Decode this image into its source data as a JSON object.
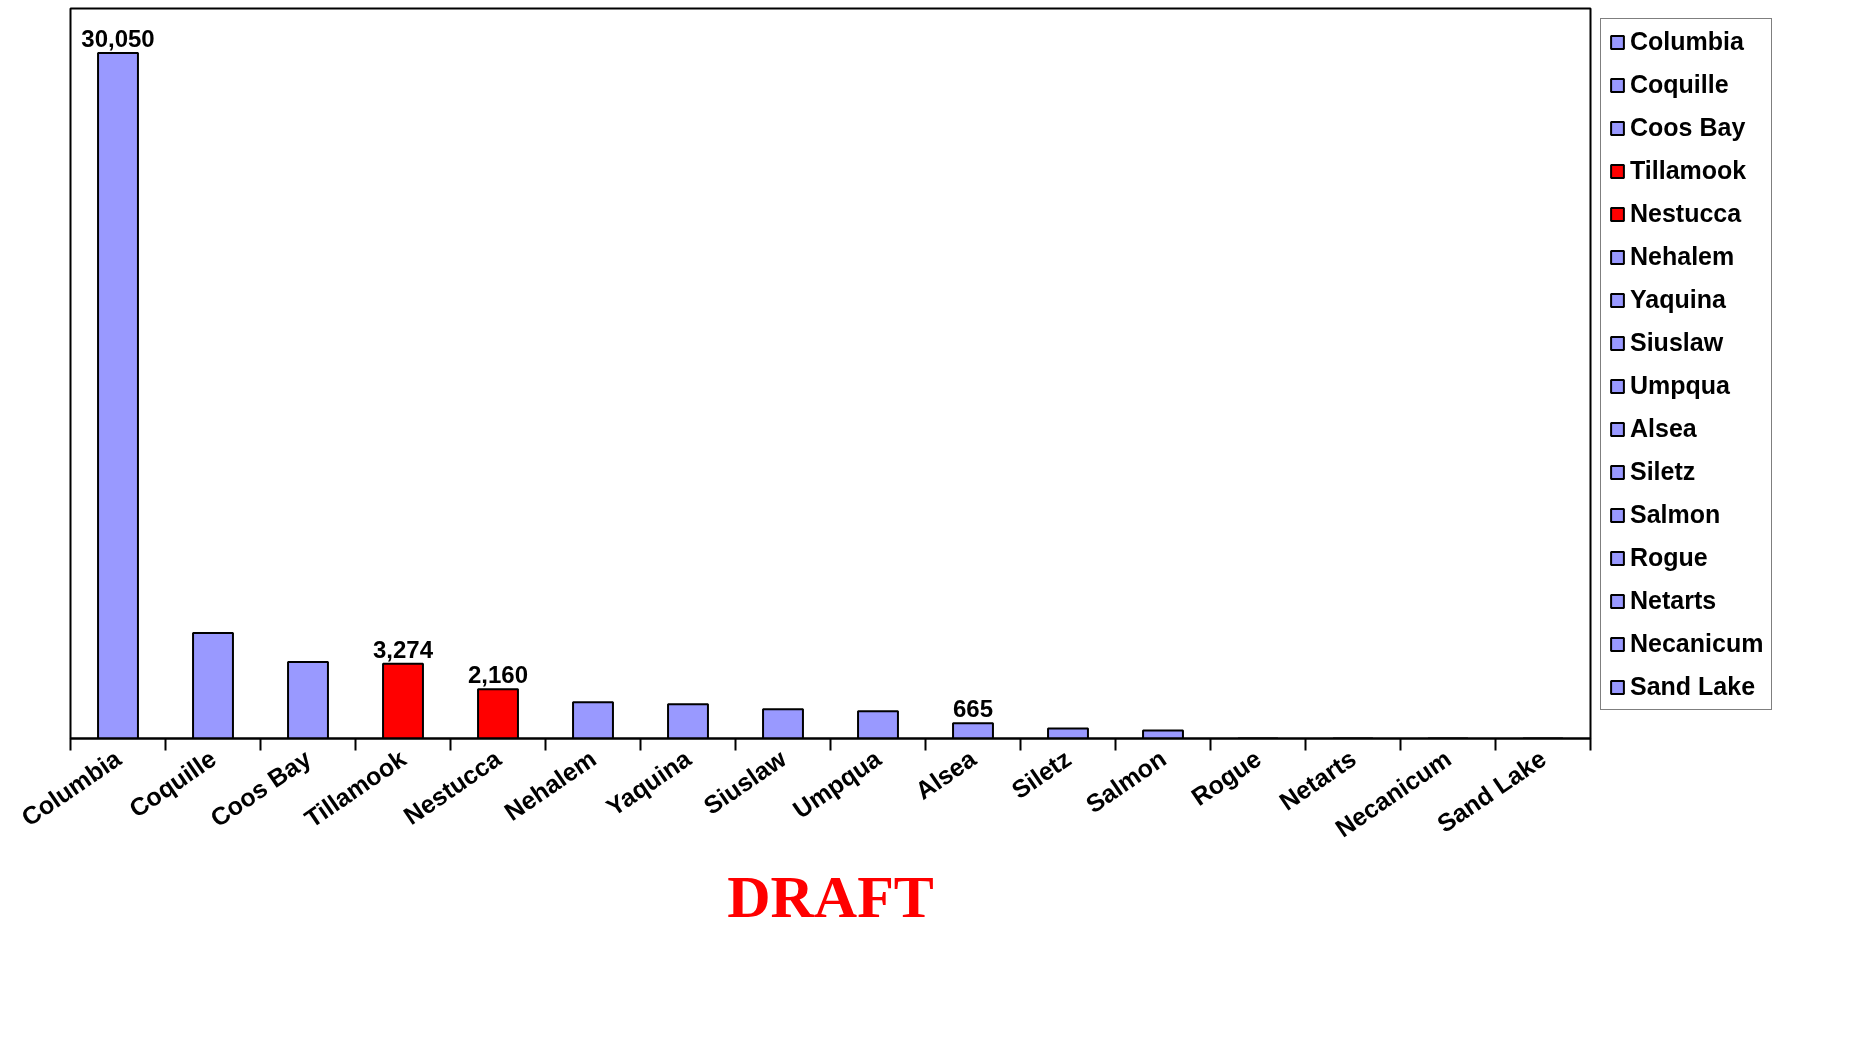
{
  "chart_data": {
    "type": "bar",
    "categories": [
      "Columbia",
      "Coquille",
      "Coos Bay",
      "Tillamook",
      "Nestucca",
      "Nehalem",
      "Yaquina",
      "Siuslaw",
      "Umpqua",
      "Alsea",
      "Siletz",
      "Salmon",
      "Rogue",
      "Netarts",
      "Necanicum",
      "Sand Lake"
    ],
    "series": [
      {
        "name": "Columbia",
        "color": "#9999ff",
        "values": [
          30050,
          null,
          null,
          null,
          null,
          null,
          null,
          null,
          null,
          null,
          null,
          null,
          null,
          null,
          null,
          null
        ],
        "value_labels": [
          "30,050",
          null,
          null,
          null,
          null,
          null,
          null,
          null,
          null,
          null,
          null,
          null,
          null,
          null,
          null,
          null
        ]
      },
      {
        "name": "Coquille",
        "color": "#9999ff",
        "values": [
          null,
          4630,
          null,
          null,
          null,
          null,
          null,
          null,
          null,
          null,
          null,
          null,
          null,
          null,
          null,
          null
        ]
      },
      {
        "name": "Coos Bay",
        "color": "#9999ff",
        "values": [
          null,
          null,
          3350,
          null,
          null,
          null,
          null,
          null,
          null,
          null,
          null,
          null,
          null,
          null,
          null,
          null
        ]
      },
      {
        "name": "Tillamook",
        "color": "#ff0000",
        "values": [
          null,
          null,
          null,
          3274,
          null,
          null,
          null,
          null,
          null,
          null,
          null,
          null,
          null,
          null,
          null,
          null
        ],
        "value_labels": [
          null,
          null,
          null,
          "3,274",
          null,
          null,
          null,
          null,
          null,
          null,
          null,
          null,
          null,
          null,
          null,
          null
        ]
      },
      {
        "name": "Nestucca",
        "color": "#ff0000",
        "values": [
          null,
          null,
          null,
          null,
          2160,
          null,
          null,
          null,
          null,
          null,
          null,
          null,
          null,
          null,
          null,
          null
        ],
        "value_labels": [
          null,
          null,
          null,
          null,
          "2,160",
          null,
          null,
          null,
          null,
          null,
          null,
          null,
          null,
          null,
          null,
          null
        ]
      },
      {
        "name": "Nehalem",
        "color": "#9999ff",
        "values": [
          null,
          null,
          null,
          null,
          null,
          1590,
          null,
          null,
          null,
          null,
          null,
          null,
          null,
          null,
          null,
          null
        ]
      },
      {
        "name": "Yaquina",
        "color": "#9999ff",
        "values": [
          null,
          null,
          null,
          null,
          null,
          null,
          1500,
          null,
          null,
          null,
          null,
          null,
          null,
          null,
          null,
          null
        ]
      },
      {
        "name": "Siuslaw",
        "color": "#9999ff",
        "values": [
          null,
          null,
          null,
          null,
          null,
          null,
          null,
          1280,
          null,
          null,
          null,
          null,
          null,
          null,
          null,
          null
        ]
      },
      {
        "name": "Umpqua",
        "color": "#9999ff",
        "values": [
          null,
          null,
          null,
          null,
          null,
          null,
          null,
          null,
          1190,
          null,
          null,
          null,
          null,
          null,
          null,
          null
        ]
      },
      {
        "name": "Alsea",
        "color": "#9999ff",
        "values": [
          null,
          null,
          null,
          null,
          null,
          null,
          null,
          null,
          null,
          665,
          null,
          null,
          null,
          null,
          null,
          null
        ],
        "value_labels": [
          null,
          null,
          null,
          null,
          null,
          null,
          null,
          null,
          null,
          "665",
          null,
          null,
          null,
          null,
          null,
          null
        ]
      },
      {
        "name": "Siletz",
        "color": "#9999ff",
        "values": [
          null,
          null,
          null,
          null,
          null,
          null,
          null,
          null,
          null,
          null,
          440,
          null,
          null,
          null,
          null,
          null
        ]
      },
      {
        "name": "Salmon",
        "color": "#9999ff",
        "values": [
          null,
          null,
          null,
          null,
          null,
          null,
          null,
          null,
          null,
          null,
          null,
          350,
          null,
          null,
          null,
          null
        ]
      },
      {
        "name": "Rogue",
        "color": "#9999ff",
        "values": [
          null,
          null,
          null,
          null,
          null,
          null,
          null,
          null,
          null,
          null,
          null,
          null,
          0,
          null,
          null,
          null
        ]
      },
      {
        "name": "Netarts",
        "color": "#9999ff",
        "values": [
          null,
          null,
          null,
          null,
          null,
          null,
          null,
          null,
          null,
          null,
          null,
          null,
          null,
          0,
          null,
          null
        ]
      },
      {
        "name": "Necanicum",
        "color": "#9999ff",
        "values": [
          null,
          null,
          null,
          null,
          null,
          null,
          null,
          null,
          null,
          null,
          null,
          null,
          null,
          null,
          0,
          null
        ]
      },
      {
        "name": "Sand Lake",
        "color": "#9999ff",
        "values": [
          null,
          null,
          null,
          null,
          null,
          null,
          null,
          null,
          null,
          null,
          null,
          null,
          null,
          null,
          null,
          0
        ]
      }
    ],
    "ylim": [
      0,
      32000
    ],
    "tick_labels": "x",
    "legend": "right",
    "grid": false,
    "annotations": [
      "DRAFT"
    ]
  }
}
